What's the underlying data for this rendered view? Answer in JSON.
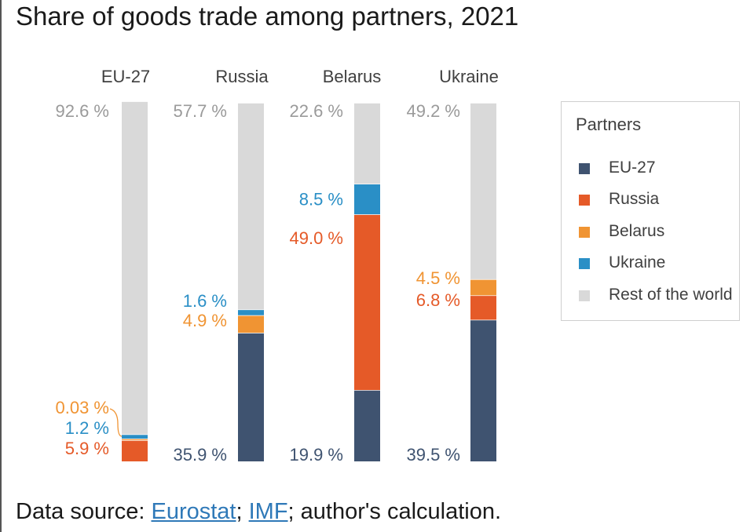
{
  "title": "Share of goods  trade among partners, 2021",
  "source": {
    "prefix": "Data source: ",
    "link1": "Eurostat",
    "sep1": "; ",
    "link2": "IMF",
    "suffix": "; author's calculation."
  },
  "colors": {
    "EU-27": "#3f5370",
    "Russia": "#e55a28",
    "Belarus": "#f09433",
    "Ukraine": "#2a8fc6",
    "Rest of the world": "#d9d9d9",
    "label_grey": "#9a9a9a"
  },
  "chart_data": {
    "type": "bar",
    "stacked": true,
    "title": "Share of goods  trade among partners, 2021",
    "categories": [
      "EU-27",
      "Russia",
      "Belarus",
      "Ukraine"
    ],
    "ylim": [
      0,
      100
    ],
    "legend": {
      "title": "Partners",
      "position": "right",
      "entries": [
        "EU-27",
        "Russia",
        "Belarus",
        "Ukraine",
        "Rest of the world"
      ]
    },
    "series": [
      {
        "name": "EU-27",
        "values": [
          0,
          35.9,
          19.9,
          39.5
        ],
        "labels": [
          "",
          "35.9 %",
          "19.9 %",
          "39.5 %"
        ]
      },
      {
        "name": "Russia",
        "values": [
          5.9,
          0,
          49.0,
          6.8
        ],
        "labels": [
          "5.9 %",
          "",
          "49.0 %",
          "6.8 %"
        ]
      },
      {
        "name": "Belarus",
        "values": [
          0.03,
          4.9,
          0,
          4.5
        ],
        "labels": [
          "0.03 %",
          "4.9 %",
          "",
          "4.5 %"
        ]
      },
      {
        "name": "Ukraine",
        "values": [
          1.2,
          1.6,
          8.5,
          0
        ],
        "labels": [
          "1.2 %",
          "1.6 %",
          "8.5 %",
          ""
        ]
      },
      {
        "name": "Rest of the world",
        "values": [
          92.6,
          57.7,
          22.6,
          49.2
        ],
        "labels": [
          "92.6 %",
          "57.7 %",
          "22.6 %",
          "49.2 %"
        ]
      }
    ]
  }
}
